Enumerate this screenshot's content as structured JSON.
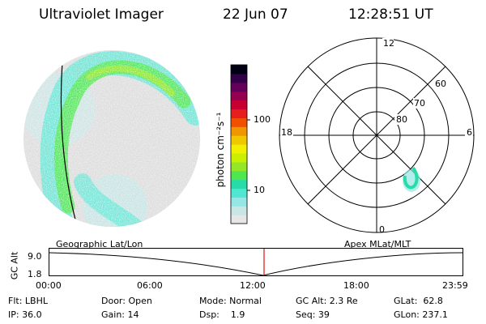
{
  "header": {
    "instrument": "Ultraviolet Imager",
    "date": "22 Jun 07",
    "time": "12:28:51 UT"
  },
  "colorbar": {
    "unit_label": "photon cm⁻²s⁻¹",
    "ticks": [
      "100",
      "10"
    ],
    "colors": [
      "#e6e6e6",
      "#c8e6e6",
      "#96e6e6",
      "#50e6d2",
      "#28dcaa",
      "#50e650",
      "#96e628",
      "#c8f000",
      "#f0f000",
      "#f0c800",
      "#f09600",
      "#f05000",
      "#e61e1e",
      "#c80032",
      "#960050",
      "#64005a",
      "#320046",
      "#000014"
    ]
  },
  "polar_plot": {
    "mlt_labels": {
      "top": "12",
      "left": "18",
      "right": "6",
      "bottom": "0"
    },
    "lat_labels": [
      "60",
      "70",
      "80"
    ]
  },
  "timeline": {
    "y_axis_label": "GC Alt",
    "y_ticks": [
      "9.0",
      "1.8"
    ],
    "left_title": "Geographic Lat/Lon",
    "right_title": "Apex MLat/MLT",
    "x_ticks": [
      "00:00",
      "06:00",
      "12:00",
      "18:00",
      "23:59"
    ]
  },
  "status": {
    "flt": "Flt: LBHL",
    "ip": "IP: 36.0",
    "door": "Door: Open",
    "gain": "Gain: 14",
    "mode": "Mode: Normal",
    "dsp": "Dsp:    1.9",
    "gc_alt": "GC Alt: 2.3 Re",
    "seq": "Seq: 39",
    "glat": "GLat:  62.8",
    "glon": "GLon: 237.1"
  }
}
